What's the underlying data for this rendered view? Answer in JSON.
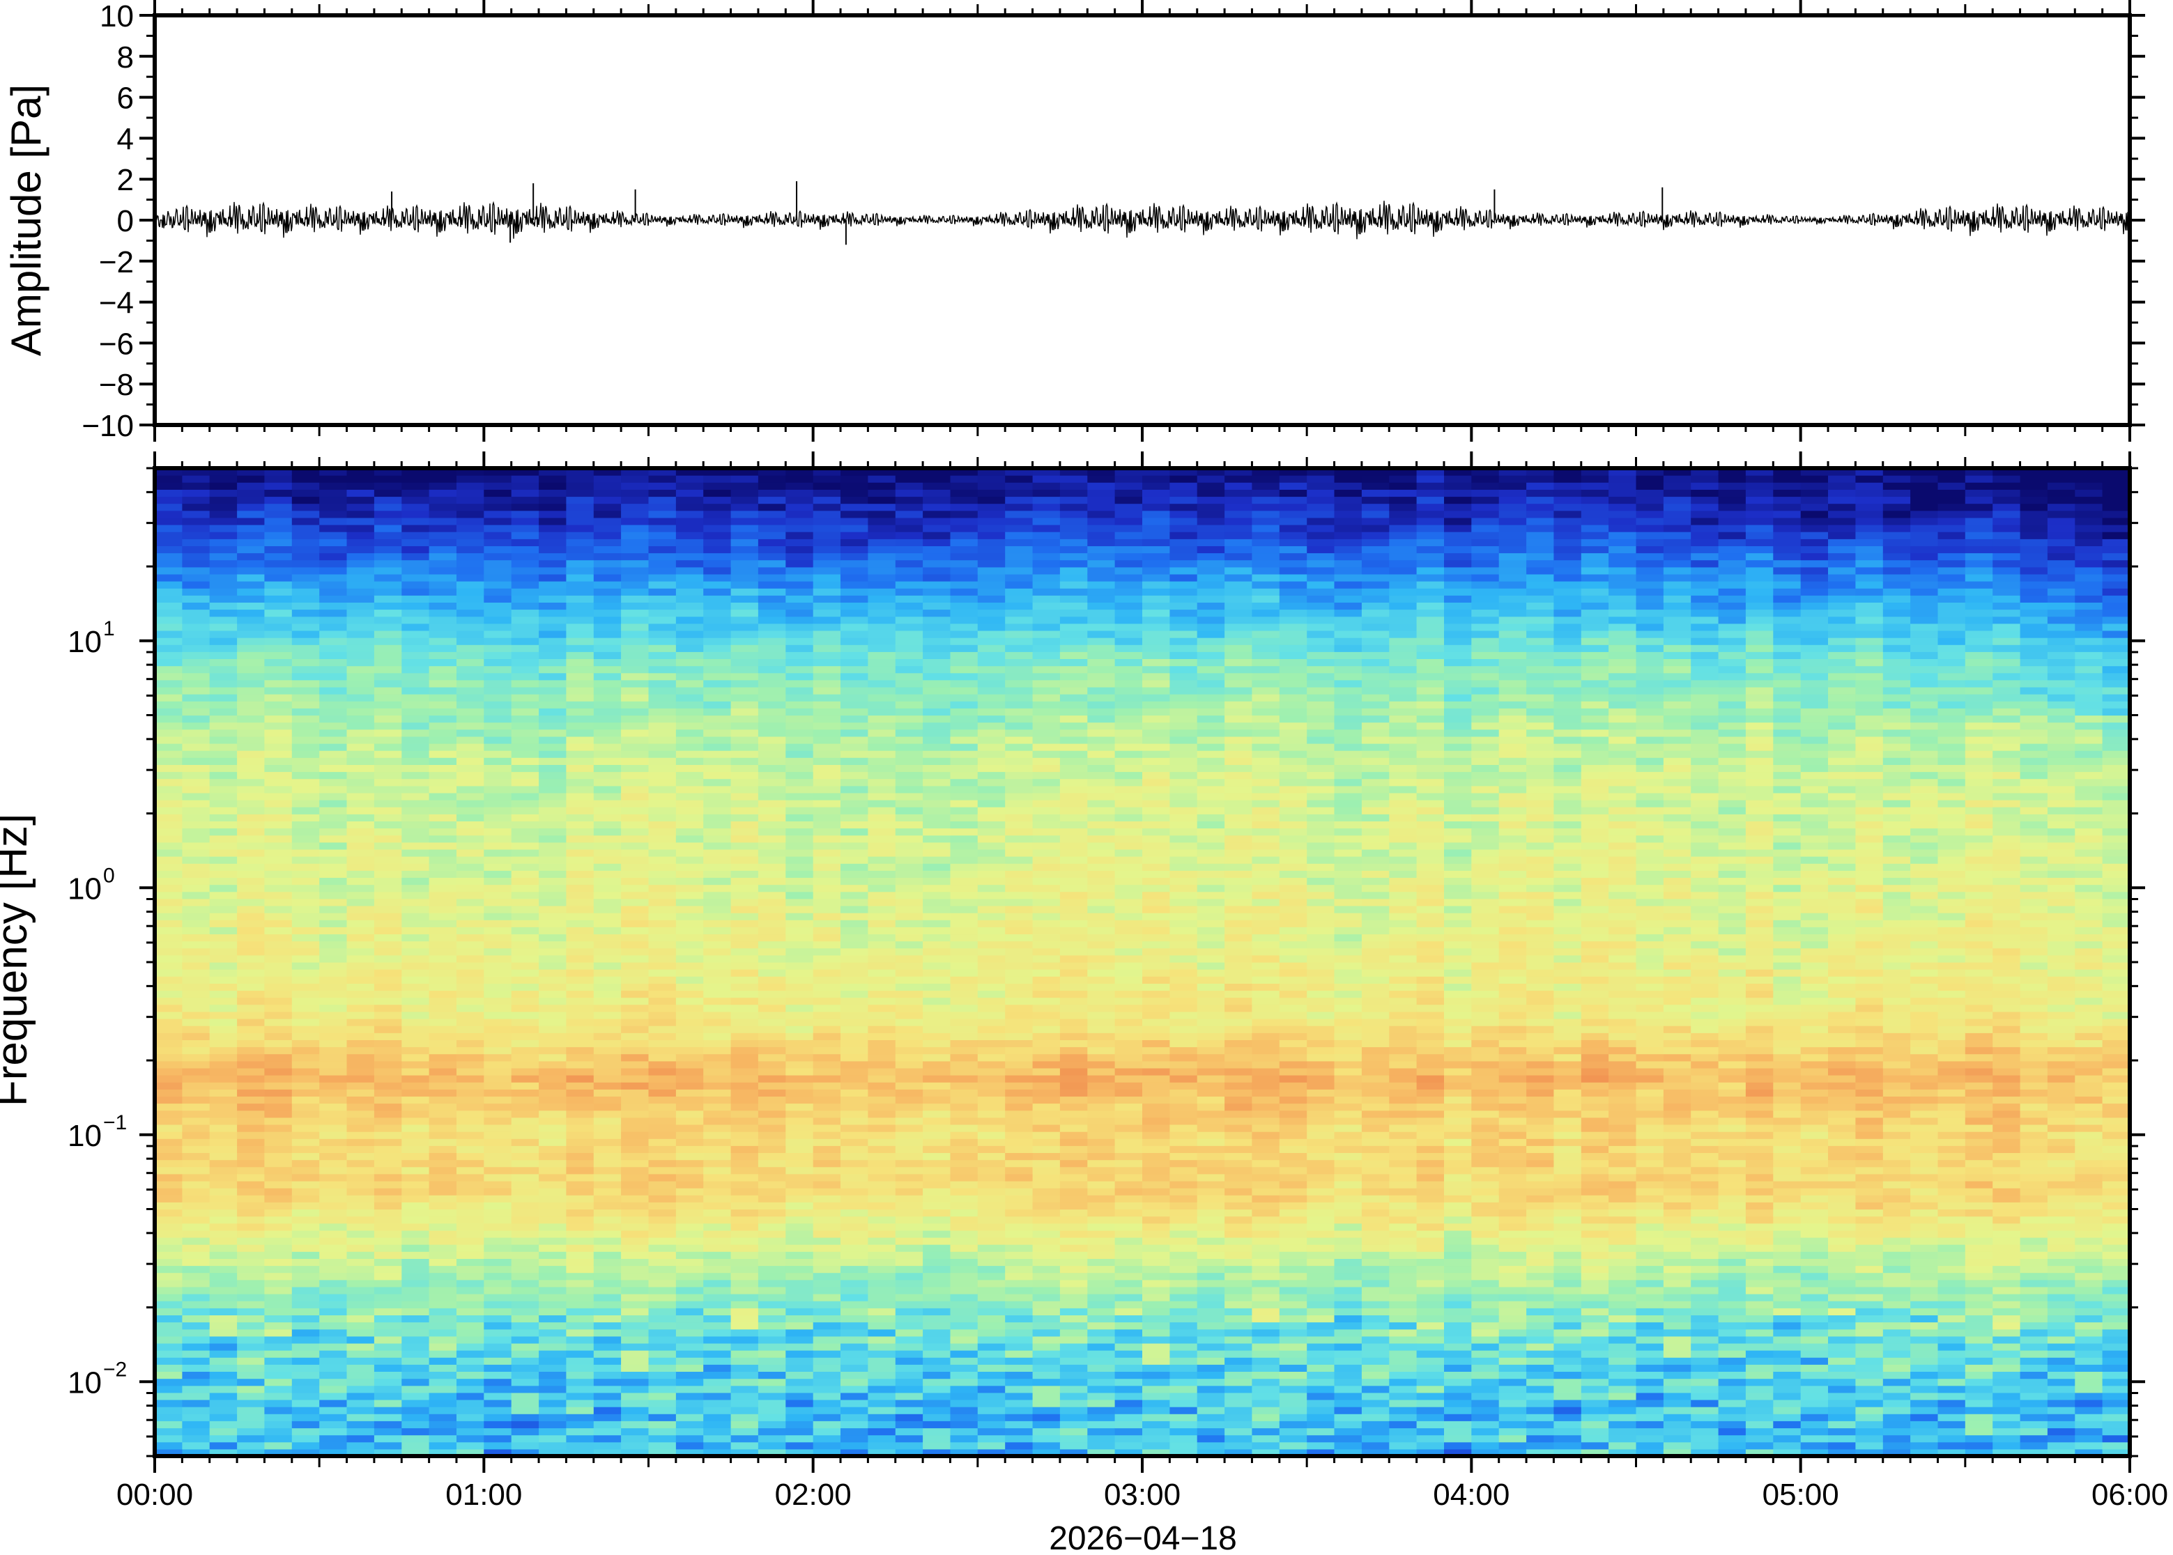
{
  "chart_data": [
    {
      "type": "line",
      "title": "",
      "ylabel": "Amplitude [Pa]",
      "ylim": [
        -10,
        10
      ],
      "yticks": [
        10,
        8,
        6,
        4,
        2,
        0,
        -2,
        -4,
        -6,
        -8,
        -10
      ],
      "ytick_labels": [
        "10",
        "8",
        "6",
        "4",
        "2",
        "0",
        "−2",
        "−4",
        "−6",
        "−8",
        "−10"
      ],
      "xlim_hours": [
        0,
        6
      ],
      "series": [
        {
          "values": {
            "baseline": 0,
            "typical_envelope": [
              -0.6,
              0.6
            ],
            "peak_spikes": [
              {
                "t_hours": 0.72,
                "value": 1.4
              },
              {
                "t_hours": 1.15,
                "value": 1.8
              },
              {
                "t_hours": 1.46,
                "value": 1.5
              },
              {
                "t_hours": 1.95,
                "value": 1.9
              },
              {
                "t_hours": 2.1,
                "value": -1.2
              },
              {
                "t_hours": 4.07,
                "value": 1.5
              },
              {
                "t_hours": 4.58,
                "value": 1.6
              },
              {
                "t_hours": 1.08,
                "value": -1.1
              }
            ]
          }
        }
      ],
      "grid": false
    },
    {
      "type": "heatmap",
      "title": "",
      "xlabel": "2026−04−18",
      "ylabel": "Frequency [Hz]",
      "x_ticks": [
        "00:00",
        "01:00",
        "02:00",
        "03:00",
        "04:00",
        "05:00",
        "06:00"
      ],
      "y_scale": "log",
      "ylim": [
        0.005,
        50
      ],
      "y_ticks": [
        {
          "value": 10,
          "base": "10",
          "exp": "1"
        },
        {
          "value": 1,
          "base": "10",
          "exp": "0"
        },
        {
          "value": 0.1,
          "base": "10",
          "exp": "−1"
        },
        {
          "value": 0.01,
          "base": "10",
          "exp": "−2"
        }
      ],
      "colormap": [
        "#0a0a6e",
        "#1c2fc8",
        "#1f6ff0",
        "#2fb6f5",
        "#62e0e6",
        "#9ef0b0",
        "#e4f58c",
        "#f6e27a",
        "#f7b964",
        "#f08a4e"
      ],
      "intensity_profile_by_frequency": [
        {
          "freq_hz": 50,
          "level": 0.0
        },
        {
          "freq_hz": 30,
          "level": 0.12
        },
        {
          "freq_hz": 15,
          "level": 0.32
        },
        {
          "freq_hz": 8,
          "level": 0.5
        },
        {
          "freq_hz": 3,
          "level": 0.62
        },
        {
          "freq_hz": 1,
          "level": 0.66
        },
        {
          "freq_hz": 0.3,
          "level": 0.72
        },
        {
          "freq_hz": 0.17,
          "level": 0.88
        },
        {
          "freq_hz": 0.1,
          "level": 0.78
        },
        {
          "freq_hz": 0.06,
          "level": 0.8
        },
        {
          "freq_hz": 0.03,
          "level": 0.6
        },
        {
          "freq_hz": 0.015,
          "level": 0.45
        },
        {
          "freq_hz": 0.007,
          "level": 0.35
        }
      ],
      "grid": false
    }
  ]
}
